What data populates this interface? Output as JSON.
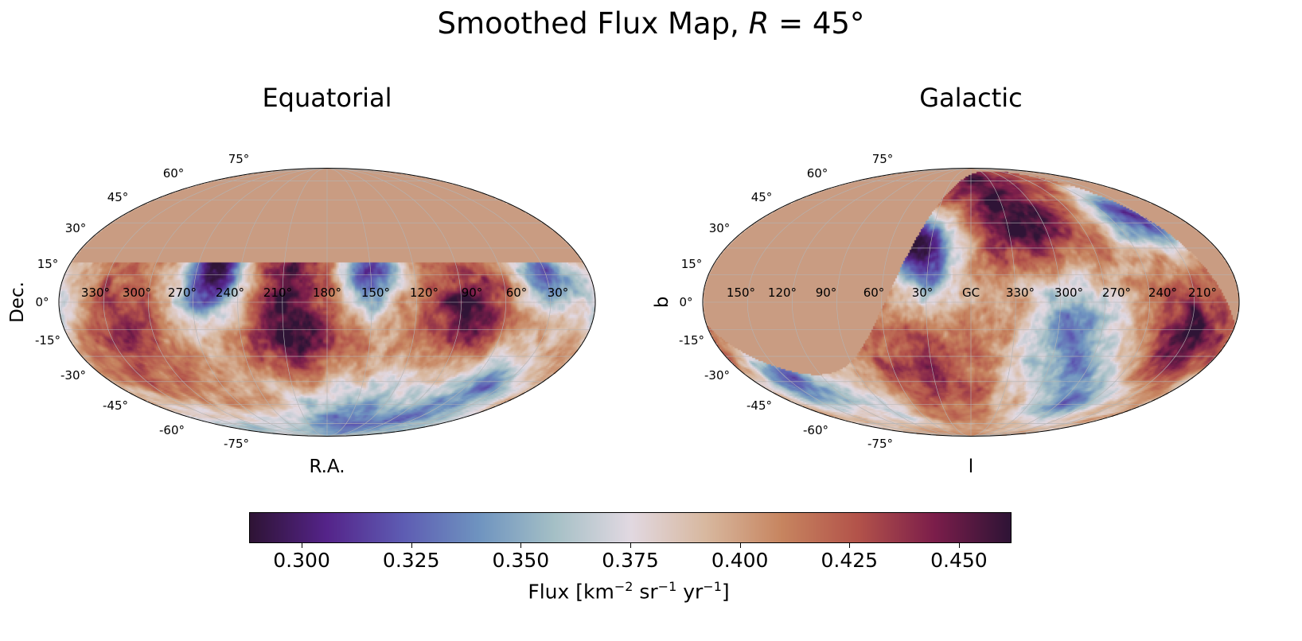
{
  "figure": {
    "title_prefix": "Smoothed Flux Map, ",
    "title_var": "R",
    "title_suffix": " = 45°"
  },
  "chart_data": [
    {
      "type": "heatmap",
      "projection": "mollweide",
      "title": "Equatorial",
      "xlabel": "R.A.",
      "ylabel": "Dec.",
      "lon_ticks": [
        "330°",
        "300°",
        "270°",
        "240°",
        "210°",
        "180°",
        "150°",
        "120°",
        "90°",
        "60°",
        "30°"
      ],
      "lat_ticks": [
        "75°",
        "60°",
        "45°",
        "30°",
        "15°",
        "0°",
        "-15°",
        "-30°",
        "-45°",
        "-60°",
        "-75°"
      ],
      "lon_center": 180,
      "lon_direction": "increasing-left",
      "grid": true,
      "masked_region": "Dec > ~+22° (no data, uniform fill)",
      "approx_background_flux": 0.41,
      "approx_features": [
        {
          "ra": 200,
          "dec": -22,
          "flux": 0.462,
          "kind": "excess"
        },
        {
          "ra": 205,
          "dec": 15,
          "flux": 0.445,
          "kind": "excess"
        },
        {
          "ra": 85,
          "dec": -5,
          "flux": 0.455,
          "kind": "excess"
        },
        {
          "ra": 320,
          "dec": -15,
          "flux": 0.44,
          "kind": "excess"
        },
        {
          "ra": 150,
          "dec": 16,
          "flux": 0.31,
          "kind": "deficit"
        },
        {
          "ra": 255,
          "dec": 18,
          "flux": 0.3,
          "kind": "deficit"
        },
        {
          "ra": 30,
          "dec": 15,
          "flux": 0.33,
          "kind": "deficit"
        },
        {
          "ra": 45,
          "dec": -45,
          "flux": 0.345,
          "kind": "deficit"
        },
        {
          "ra": 100,
          "dec": -75,
          "flux": 0.35,
          "kind": "deficit"
        },
        {
          "ra": 270,
          "dec": -2,
          "flux": 0.37,
          "kind": "deficit"
        },
        {
          "ra": 0,
          "dec": 0,
          "flux": 0.37,
          "kind": "deficit"
        },
        {
          "ra": 180,
          "dec": -65,
          "flux": 0.375,
          "kind": "deficit"
        }
      ]
    },
    {
      "type": "heatmap",
      "projection": "mollweide",
      "title": "Galactic",
      "xlabel": "l",
      "ylabel": "b",
      "lon_ticks": [
        "150°",
        "120°",
        "90°",
        "60°",
        "30°",
        "GC",
        "330°",
        "300°",
        "270°",
        "240°",
        "210°"
      ],
      "lat_ticks": [
        "75°",
        "60°",
        "45°",
        "30°",
        "15°",
        "0°",
        "-15°",
        "-30°",
        "-45°",
        "-60°",
        "-75°"
      ],
      "lon_center": 0,
      "lon_direction": "increasing-left",
      "grid": true,
      "masked_region": "same sky mask as Equatorial, shown in galactic coordinates"
    }
  ],
  "colorbar": {
    "colormap": "twilight_shifted",
    "range": [
      0.288,
      0.462
    ],
    "ticks": [
      "0.300",
      "0.325",
      "0.350",
      "0.375",
      "0.400",
      "0.425",
      "0.450"
    ],
    "tick_values": [
      0.3,
      0.325,
      0.35,
      0.375,
      0.4,
      0.425,
      0.45
    ],
    "label_parts": [
      "Flux [km",
      "−2",
      " sr",
      "−1",
      " yr",
      "−1",
      "]"
    ],
    "orientation": "horizontal",
    "placement": "bottom"
  },
  "colors": {
    "mask": "#c99c82",
    "grid": "#b4b4b4",
    "colormap_stops": [
      "#2f1436",
      "#55248a",
      "#5e5cb3",
      "#6f94c0",
      "#a5c0c6",
      "#e2d9e2",
      "#d8b89f",
      "#c78560",
      "#b3534a",
      "#7c1e4b",
      "#2f1436"
    ]
  }
}
